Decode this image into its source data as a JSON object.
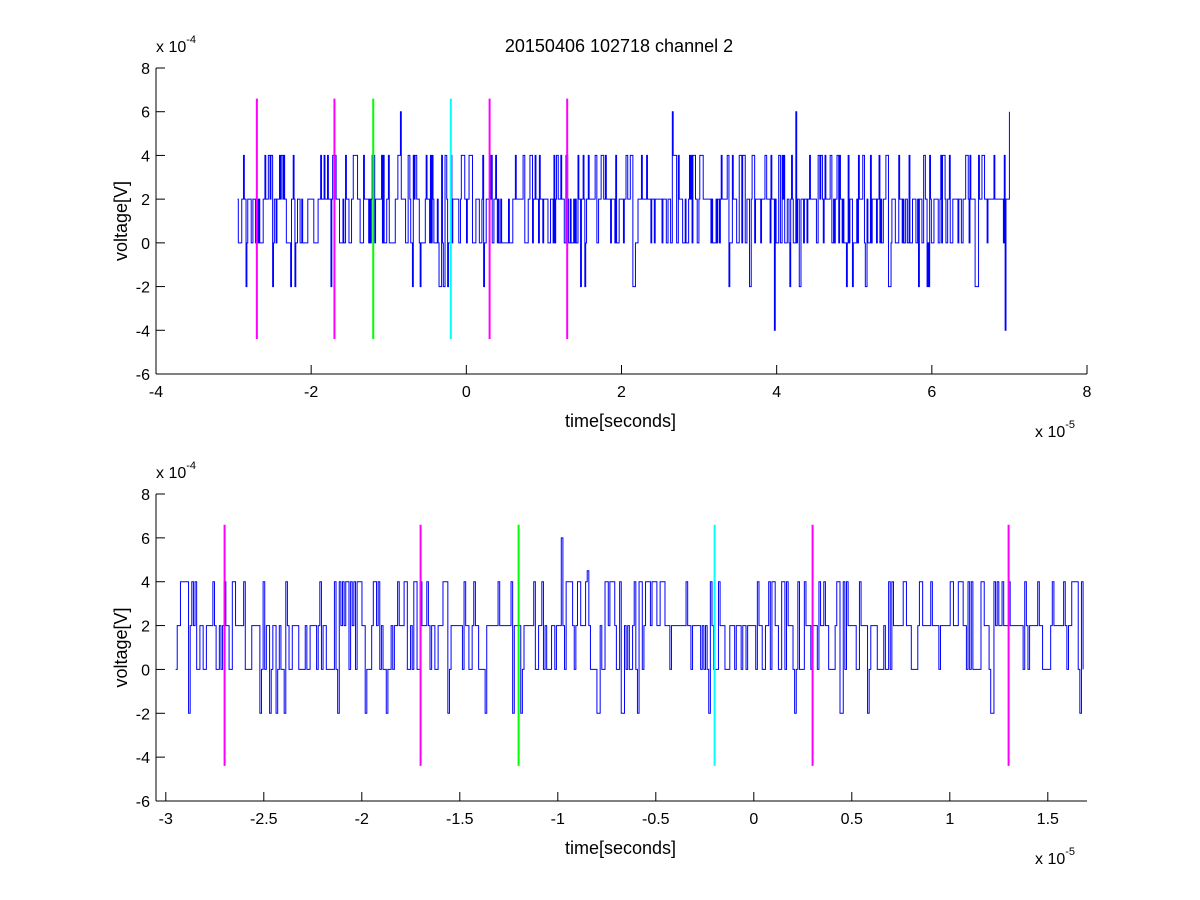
{
  "figure": {
    "title": "20150406 102718 channel 2",
    "trace_color": "#0000ff",
    "axes_color": "#000000"
  },
  "chart_data": [
    {
      "type": "line",
      "title": "20150406 102718 channel 2",
      "xlabel": "time[seconds]",
      "ylabel": "voltage[V]",
      "x_multiplier": "x 10",
      "x_exponent": "-5",
      "y_multiplier": "x 10",
      "y_exponent": "-4",
      "xlim": [
        -4,
        8
      ],
      "ylim": [
        -6,
        8
      ],
      "xticks": [
        -4,
        -2,
        0,
        2,
        4,
        6,
        8
      ],
      "yticks": [
        -6,
        -4,
        -2,
        0,
        2,
        4,
        6,
        8
      ],
      "xtick_labels": [
        "-4",
        "-2",
        "0",
        "2",
        "4",
        "6",
        "8"
      ],
      "ytick_labels": [
        "-6",
        "-4",
        "-2",
        "0",
        "2",
        "4",
        "6",
        "8"
      ],
      "grid": false,
      "signal": {
        "x_range": [
          -2.95,
          7.0
        ],
        "levels": [
          -4,
          -2,
          0,
          2,
          4,
          6
        ],
        "baseline": 2,
        "spikes_max": [
          [
            -0.85,
            6
          ],
          [
            4.25,
            6
          ],
          [
            7.0,
            6
          ],
          [
            1.3,
            4
          ],
          [
            2.65,
            6
          ]
        ],
        "spikes_min": [
          [
            3.97,
            -4
          ],
          [
            6.95,
            -4
          ],
          [
            -2.5,
            -2
          ],
          [
            -0.7,
            -2
          ],
          [
            4.9,
            -2
          ]
        ]
      },
      "markers": [
        {
          "x": -2.7,
          "color": "#ff00ff",
          "y0": -4.4,
          "y1": 6.6
        },
        {
          "x": -1.7,
          "color": "#ff00ff",
          "y0": -4.4,
          "y1": 6.6
        },
        {
          "x": -1.2,
          "color": "#00ff00",
          "y0": -4.4,
          "y1": 6.6
        },
        {
          "x": -0.2,
          "color": "#00ffff",
          "y0": -4.4,
          "y1": 6.6
        },
        {
          "x": 0.3,
          "color": "#ff00ff",
          "y0": -4.4,
          "y1": 6.6
        },
        {
          "x": 1.3,
          "color": "#ff00ff",
          "y0": -4.4,
          "y1": 6.6
        }
      ]
    },
    {
      "type": "line",
      "title": "",
      "xlabel": "time[seconds]",
      "ylabel": "voltage[V]",
      "x_multiplier": "x 10",
      "x_exponent": "-5",
      "y_multiplier": "x 10",
      "y_exponent": "-4",
      "xlim": [
        -3.05,
        1.7
      ],
      "ylim": [
        -6,
        8
      ],
      "xticks": [
        -3,
        -2.5,
        -2,
        -1.5,
        -1,
        -0.5,
        0,
        0.5,
        1,
        1.5
      ],
      "yticks": [
        -6,
        -4,
        -2,
        0,
        2,
        4,
        6,
        8
      ],
      "xtick_labels": [
        "-3",
        "-2.5",
        "-2",
        "-1.5",
        "-1",
        "-0.5",
        "0",
        "0.5",
        "1",
        "1.5"
      ],
      "ytick_labels": [
        "-6",
        "-4",
        "-2",
        "0",
        "2",
        "4",
        "6",
        "8"
      ],
      "grid": false,
      "signal": {
        "x_range": [
          -2.95,
          1.68
        ],
        "levels": [
          -2,
          0,
          2,
          4
        ],
        "baseline": 2,
        "spikes_max": [
          [
            -0.85,
            4.5
          ],
          [
            -0.98,
            6
          ],
          [
            -2.7,
            4
          ]
        ],
        "spikes_min": [
          [
            -2.44,
            -2
          ],
          [
            -1.98,
            -2
          ],
          [
            -1.23,
            -2
          ],
          [
            -0.79,
            -2
          ],
          [
            0.58,
            -2
          ],
          [
            1.22,
            -2
          ],
          [
            1.66,
            -2
          ]
        ]
      },
      "markers": [
        {
          "x": -2.7,
          "color": "#ff00ff",
          "y0": -4.4,
          "y1": 6.6
        },
        {
          "x": -1.7,
          "color": "#ff00ff",
          "y0": -4.4,
          "y1": 6.6
        },
        {
          "x": -1.2,
          "color": "#00ff00",
          "y0": -4.4,
          "y1": 6.6
        },
        {
          "x": -0.2,
          "color": "#00ffff",
          "y0": -4.4,
          "y1": 6.6
        },
        {
          "x": 0.3,
          "color": "#ff00ff",
          "y0": -4.4,
          "y1": 6.6
        },
        {
          "x": 1.3,
          "color": "#ff00ff",
          "y0": -4.4,
          "y1": 6.6
        }
      ]
    }
  ]
}
